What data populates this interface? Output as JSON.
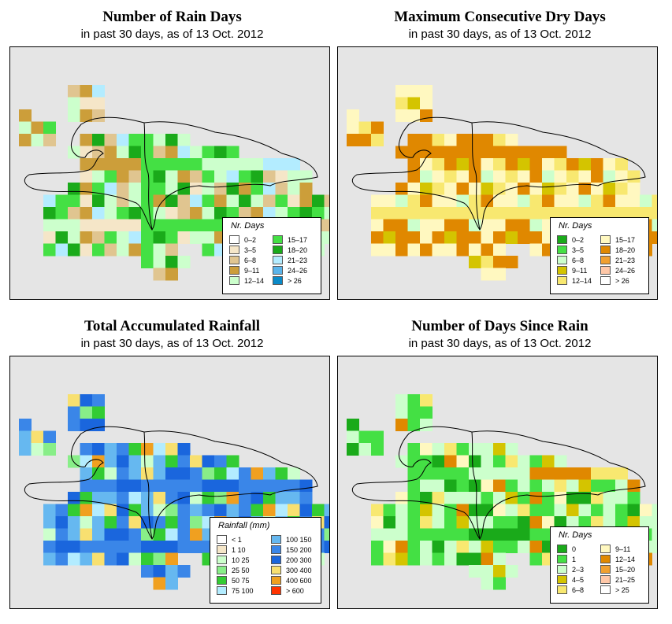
{
  "panels": [
    {
      "title": "Number of Rain Days",
      "subtitle": "in past 30 days, as of  13 Oct. 2012",
      "legend_title": "Nr. Days",
      "legend_columns": 2,
      "legend": [
        {
          "label": "0–2",
          "color": "#ffffff"
        },
        {
          "label": "3–5",
          "color": "#f5e6c8"
        },
        {
          "label": "6–8",
          "color": "#e0c590"
        },
        {
          "label": "9–11",
          "color": "#cc9e3a"
        },
        {
          "label": "12–14",
          "color": "#ccffcc"
        },
        {
          "label": "15–17",
          "color": "#44e044"
        },
        {
          "label": "18–20",
          "color": "#1aaa1a"
        },
        {
          "label": "21–23",
          "color": "#b3ecff"
        },
        {
          "label": "24–26",
          "color": "#5ab4ea"
        },
        {
          "label": "> 26",
          "color": "#0a8ac8"
        }
      ]
    },
    {
      "title": "Maximum Consecutive Dry Days",
      "subtitle": "in past 30 days, as of  13 Oct. 2012",
      "legend_title": "Nr. Days",
      "legend_columns": 2,
      "legend": [
        {
          "label": "0–2",
          "color": "#1aaa1a"
        },
        {
          "label": "3–5",
          "color": "#44e044"
        },
        {
          "label": "6–8",
          "color": "#ccffcc"
        },
        {
          "label": "9–11",
          "color": "#d4c400"
        },
        {
          "label": "12–14",
          "color": "#f8e870"
        },
        {
          "label": "15–17",
          "color": "#fff8c0"
        },
        {
          "label": "18–20",
          "color": "#e08800"
        },
        {
          "label": "21–23",
          "color": "#f0a030"
        },
        {
          "label": "24–26",
          "color": "#ffc8a8"
        },
        {
          "label": "> 26",
          "color": "#ffffff"
        }
      ]
    },
    {
      "title": "Total Accumulated Rainfall",
      "subtitle": "in past 30 days, as of  13 Oct. 2012",
      "legend_title": "Rainfall (mm)",
      "legend_columns": 2,
      "legend": [
        {
          "label": "< 1",
          "color": "#ffffff"
        },
        {
          "label": "1   10",
          "color": "#f5e6c8"
        },
        {
          "label": "10   25",
          "color": "#ccffcc"
        },
        {
          "label": "25   50",
          "color": "#88ee88"
        },
        {
          "label": "50   75",
          "color": "#33cc33"
        },
        {
          "label": "75  100",
          "color": "#b3ecff"
        },
        {
          "label": "100  150",
          "color": "#66b8f0"
        },
        {
          "label": "150  200",
          "color": "#3a86e8"
        },
        {
          "label": "200  300",
          "color": "#1a66dd"
        },
        {
          "label": "300  400",
          "color": "#f8e070"
        },
        {
          "label": "400  600",
          "color": "#f0a020"
        },
        {
          "label": "> 600",
          "color": "#ff3300"
        }
      ]
    },
    {
      "title": "Number of Days Since Rain",
      "subtitle": "in past 30 days, as of  13 Oct. 2012",
      "legend_title": "Nr. Days",
      "legend_columns": 2,
      "legend": [
        {
          "label": "0",
          "color": "#1aaa1a"
        },
        {
          "label": "1",
          "color": "#44e044"
        },
        {
          "label": "2–3",
          "color": "#ccffcc"
        },
        {
          "label": "4–5",
          "color": "#d4c400"
        },
        {
          "label": "6–8",
          "color": "#f8e870"
        },
        {
          "label": "9–11",
          "color": "#fff8c0"
        },
        {
          "label": "12–14",
          "color": "#e08800"
        },
        {
          "label": "15–20",
          "color": "#f0a030"
        },
        {
          "label": "21–25",
          "color": "#ffc8a8"
        },
        {
          "label": "> 25",
          "color": "#ffffff"
        }
      ]
    }
  ]
}
